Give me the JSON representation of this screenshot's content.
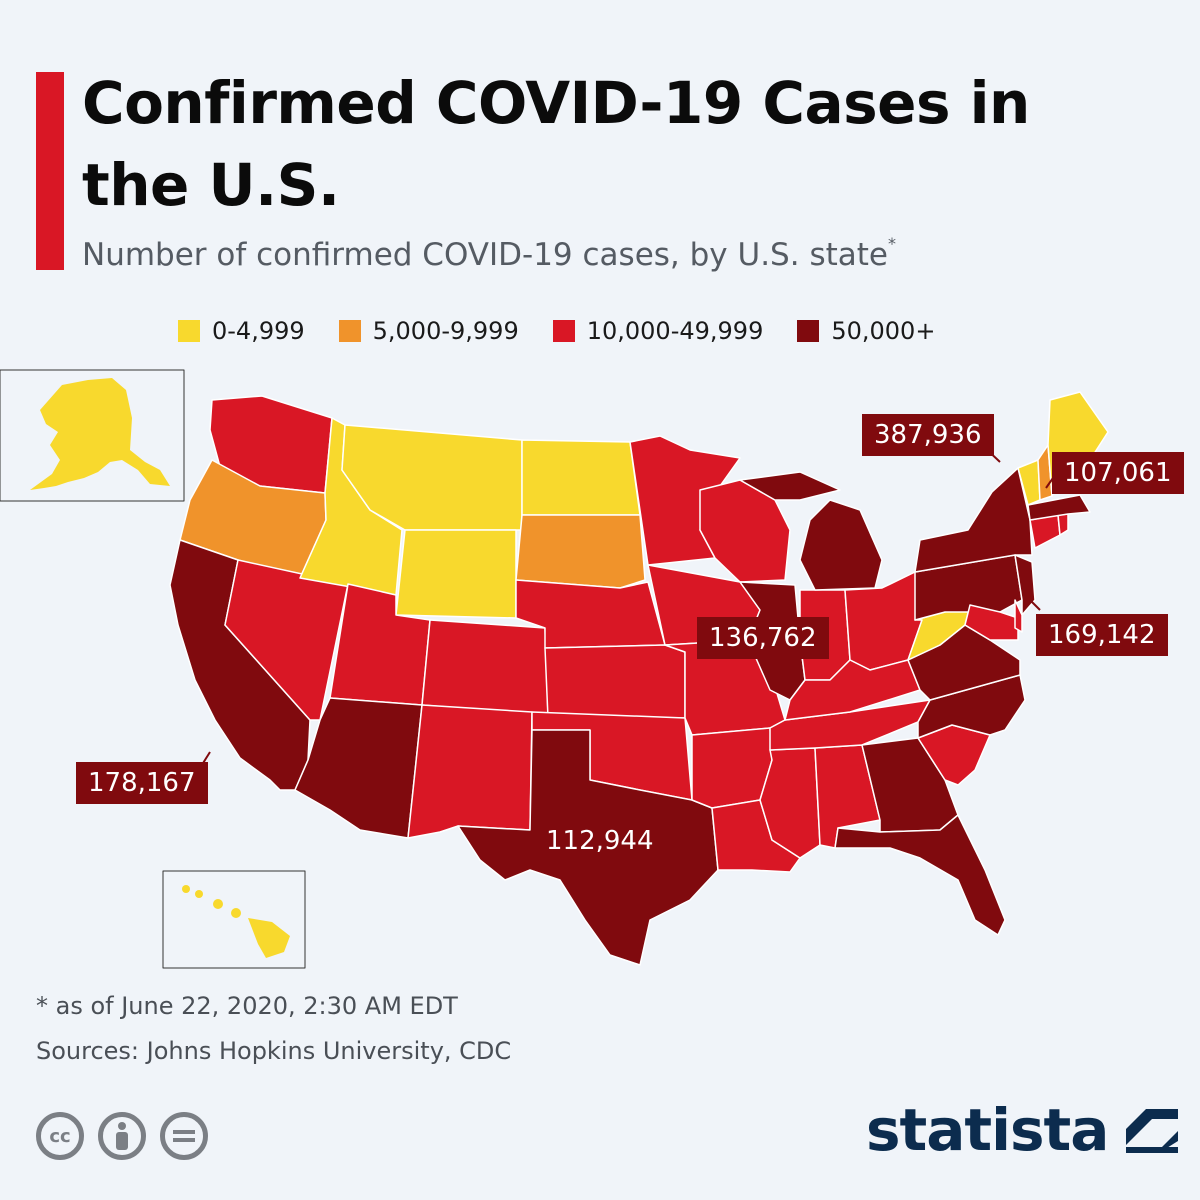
{
  "header": {
    "title": "Confirmed COVID-19 Cases in the U.S.",
    "subtitle": "Number of confirmed COVID-19 cases, by U.S. state",
    "subtitle_mark": "*"
  },
  "colors": {
    "accent": "#d91725",
    "bin_0_4999": "#f8d92d",
    "bin_5000_9999": "#f0932b",
    "bin_10000_49999": "#d91725",
    "bin_50000_plus": "#800a0e",
    "brand": "#0c2c4e"
  },
  "legend": [
    {
      "label": "0-4,999",
      "color": "#f8d92d"
    },
    {
      "label": "5,000-9,999",
      "color": "#f0932b"
    },
    {
      "label": "10,000-49,999",
      "color": "#d91725"
    },
    {
      "label": "50,000+",
      "color": "#800a0e"
    }
  ],
  "callouts": {
    "new_york": "387,936",
    "massachusetts": "107,061",
    "new_jersey": "169,142",
    "illinois": "136,762",
    "california": "178,167",
    "texas": "112,944"
  },
  "footer": {
    "note": "* as of June 22, 2020, 2:30 AM EDT",
    "sources": "Sources: Johns Hopkins University, CDC",
    "license_icons": [
      "cc-icon",
      "attribution-icon",
      "no-derivatives-icon"
    ],
    "brand": "statista"
  }
}
